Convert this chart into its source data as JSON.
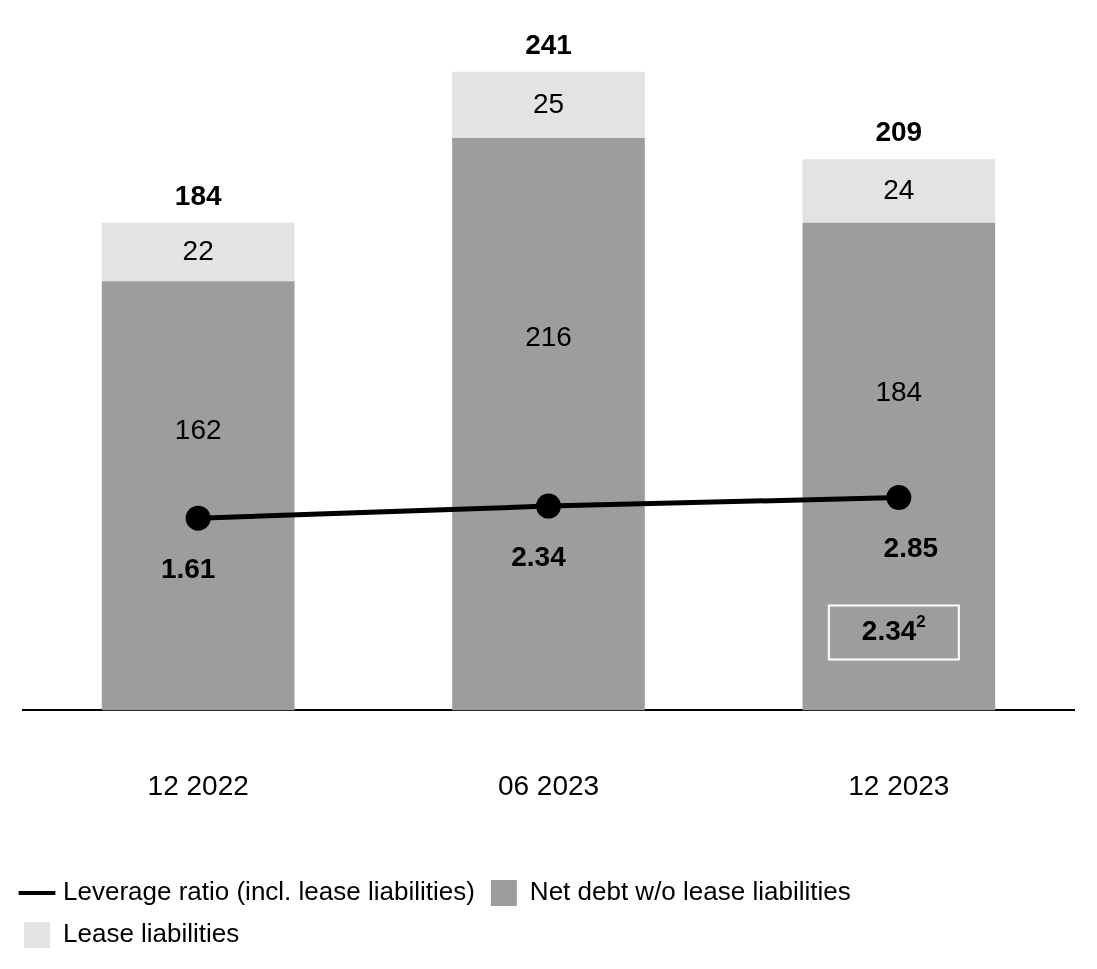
{
  "chart_data": {
    "type": "bar",
    "stacked": true,
    "categories": [
      "12 2022",
      "06 2023",
      "12 2023"
    ],
    "series": [
      {
        "name": "Leverage ratio (incl. lease liabilities)",
        "type": "line",
        "axis": "y2",
        "color": "#000000",
        "values": [
          1.61,
          2.34,
          2.85
        ]
      },
      {
        "name": "Net debt w/o lease liabilities",
        "color": "#9d9d9c",
        "values": [
          162,
          216,
          184
        ]
      },
      {
        "name": "Lease liabilities",
        "color": "#e3e3e3",
        "values": [
          22,
          25,
          24
        ]
      }
    ],
    "totals": [
      "184",
      "241",
      "209"
    ],
    "data_labels": true,
    "marker": "circle",
    "line_style": "solid",
    "legend": "bottom",
    "grid": false,
    "tick_labels": "x",
    "annotations": [
      "2.34$^{2}$"
    ]
  }
}
